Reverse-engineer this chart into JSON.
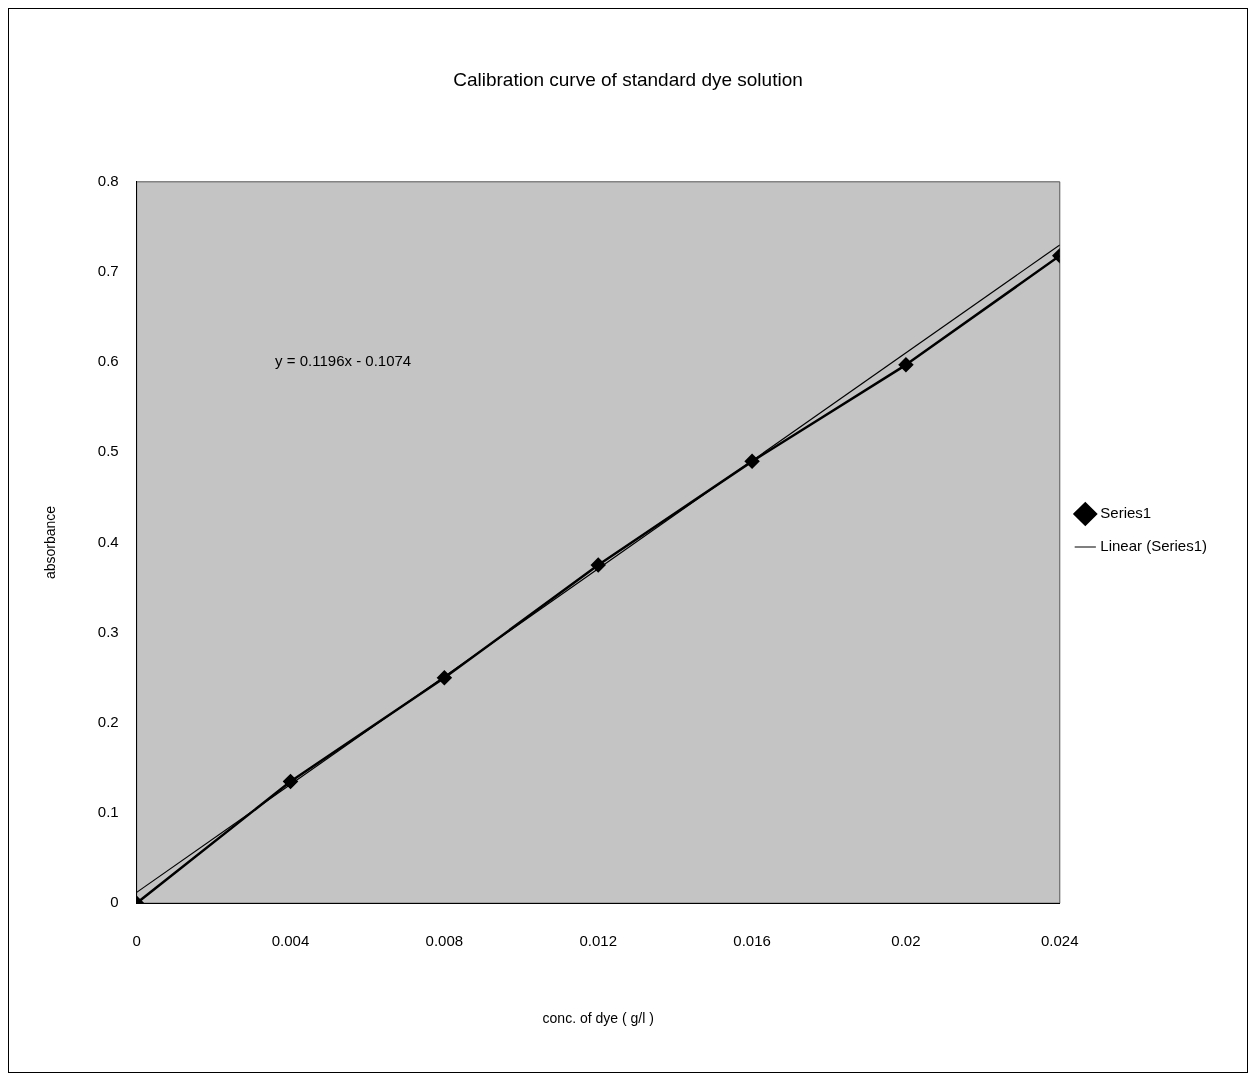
{
  "chart_data": {
    "type": "scatter",
    "title": "Calibration curve of standard dye solution",
    "xlabel": "conc. of dye ( g/l )",
    "ylabel": "absorbance",
    "x": [
      0,
      0.004,
      0.008,
      0.012,
      0.016,
      0.02,
      0.024
    ],
    "series": [
      {
        "name": "Series1",
        "type": "line",
        "color": "#000000",
        "values": [
          0,
          0.135,
          0.25,
          0.375,
          0.49,
          0.597,
          0.718
        ],
        "marker": "diamond"
      },
      {
        "name": "Linear (Series1)",
        "type": "line",
        "color": "#000000",
        "x": [
          0,
          0.024
        ],
        "values": [
          0.012,
          0.73
        ],
        "marker": "none"
      }
    ],
    "xlim": [
      0,
      0.024
    ],
    "xticks": [
      0,
      0.004,
      0.008,
      0.012,
      0.016,
      0.02,
      0.024
    ],
    "ylim": [
      0,
      0.8
    ],
    "yticks": [
      0,
      0.1,
      0.2,
      0.3,
      0.4,
      0.5,
      0.6,
      0.7,
      0.8
    ],
    "grid": false,
    "legend": "right",
    "line_style": "solid",
    "annotations": [
      "y = 0.1196x - 0.1074"
    ]
  }
}
